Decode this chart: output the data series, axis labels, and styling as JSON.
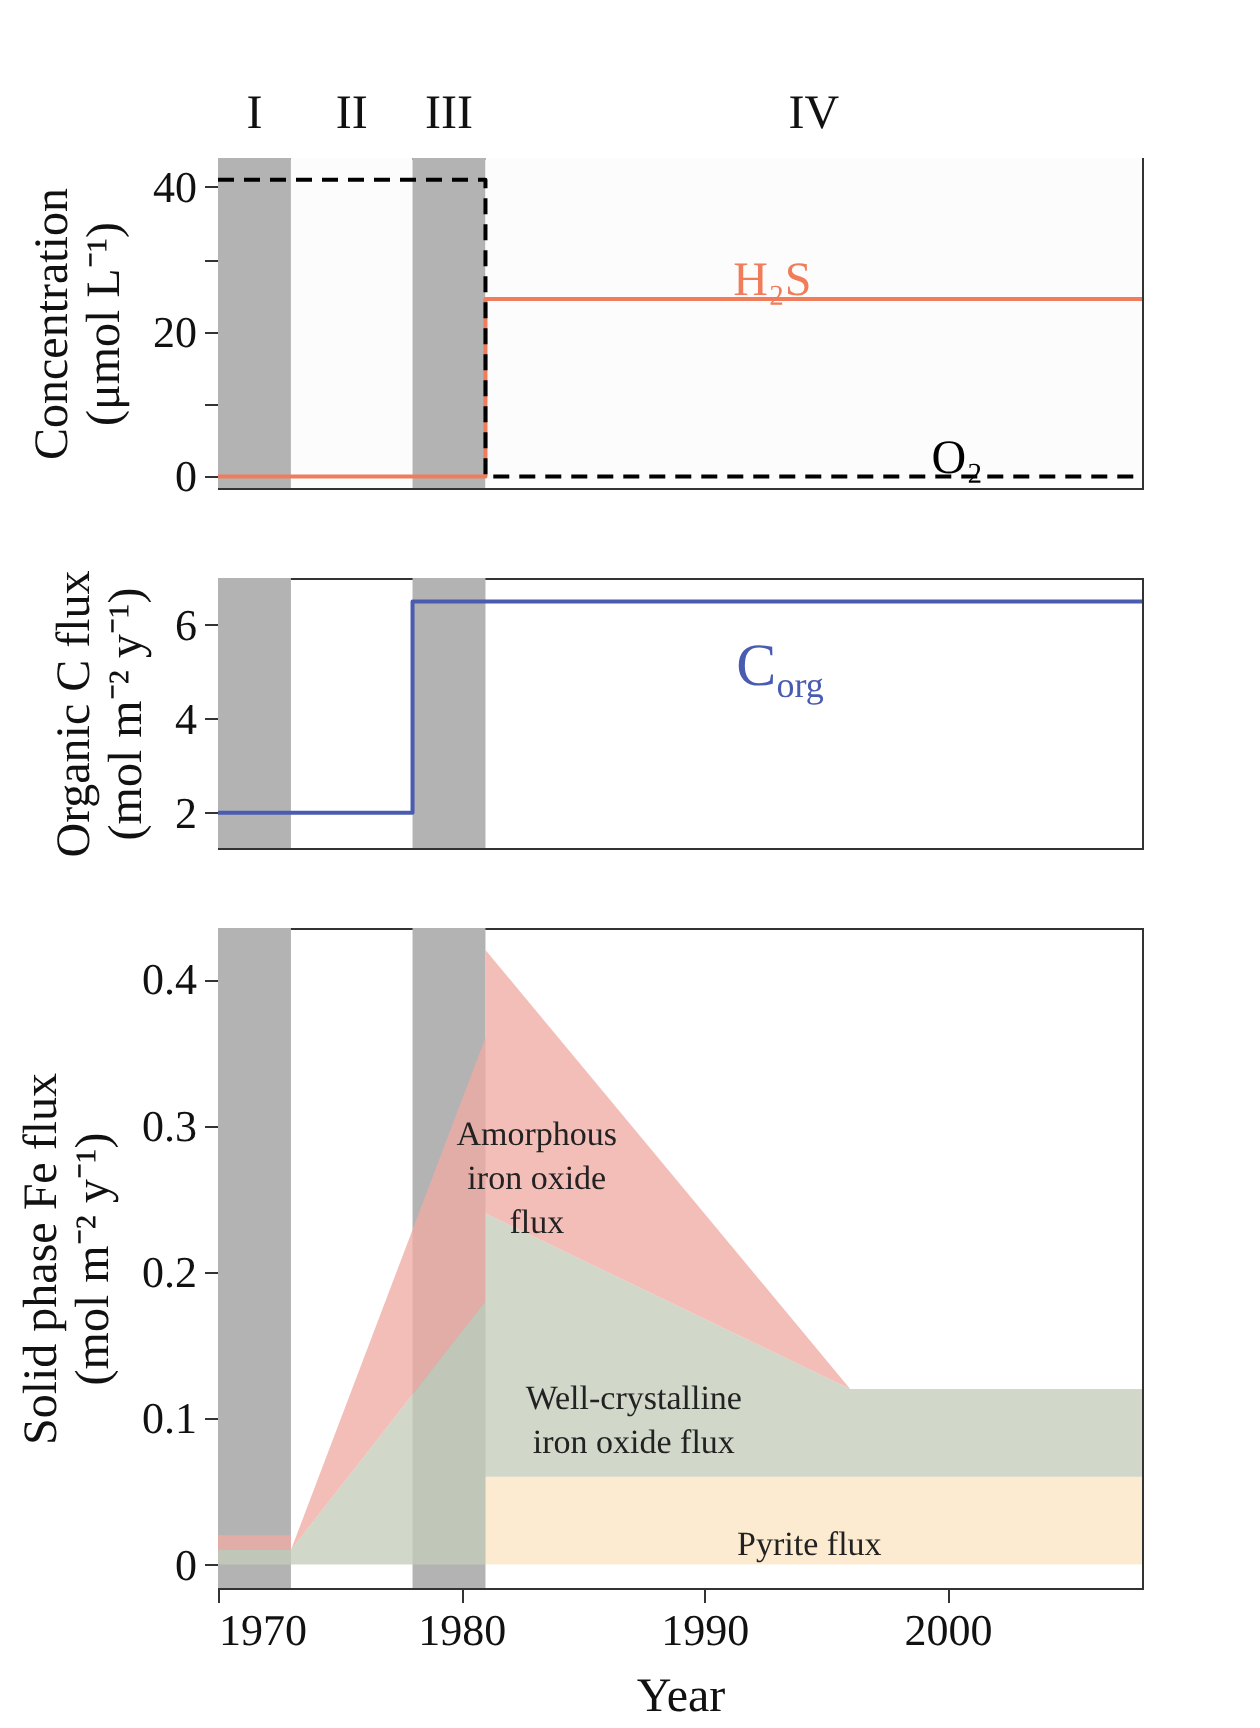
{
  "chart_data": [
    {
      "type": "line",
      "ylabel": "Concentration (μmol L⁻¹)",
      "xlim": [
        1970,
        2008
      ],
      "ylim": [
        -1.6,
        44
      ],
      "yticks": [
        0,
        {
          "value": 10,
          "label": null
        },
        20,
        {
          "value": 30,
          "label": null
        },
        40
      ],
      "tick_labels": "y",
      "series": [
        {
          "name": "H₂S",
          "color": "#f07c5c",
          "x": [
            1970,
            1981,
            1981,
            2008
          ],
          "values": [
            0,
            0,
            24.5,
            24.5
          ]
        },
        {
          "name": "O₂",
          "color": "#000000",
          "line_style": "dashed",
          "x": [
            1970,
            1981,
            1981,
            2008
          ],
          "values": [
            41,
            41,
            0,
            0
          ]
        }
      ],
      "bands": [
        {
          "axis": "x",
          "from": 1970,
          "to": 1973,
          "label": "I",
          "color": "#b3b3b3"
        },
        {
          "axis": "x",
          "from": 1973,
          "to": 1978,
          "label": "II",
          "color": "#fcfcfc"
        },
        {
          "axis": "x",
          "from": 1978,
          "to": 1981,
          "label": "III",
          "color": "#b3b3b3"
        },
        {
          "axis": "x",
          "from": 1981,
          "to": 2008,
          "label": "IV",
          "color": "#fcfcfc"
        }
      ]
    },
    {
      "type": "line",
      "ylabel": "Organic C flux (mol m⁻² y⁻¹)",
      "xlim": [
        1970,
        2008
      ],
      "ylim": [
        1.25,
        7
      ],
      "yticks": [
        2,
        4,
        6
      ],
      "tick_labels": "y",
      "series": [
        {
          "name": "C$_{org}$",
          "color": "#4a5cb0",
          "x": [
            1970,
            1978,
            1978,
            2008
          ],
          "values": [
            2,
            2,
            6.5,
            6.5
          ]
        }
      ],
      "bands": [
        {
          "axis": "x",
          "from": 1970,
          "to": 1973,
          "color": "#b3b3b3"
        },
        {
          "axis": "x",
          "from": 1978,
          "to": 1981,
          "color": "#b3b3b3"
        }
      ]
    },
    {
      "type": "area",
      "stacked": true,
      "xlabel": "Year",
      "ylabel": "Solid phase Fe flux (mol m⁻² y⁻¹)",
      "xlim": [
        1970,
        2008
      ],
      "xticks": [
        1970,
        1980,
        1990,
        2000
      ],
      "ylim": [
        -0.016,
        0.435
      ],
      "yticks": [
        0,
        0.1,
        0.2,
        0.3,
        0.4
      ],
      "x": [
        1970,
        1973,
        1973,
        1981,
        1981,
        1996,
        2008
      ],
      "series": [
        {
          "name": "Pyrite flux",
          "color": "#fbe6c4",
          "values": [
            0,
            0,
            0,
            0,
            0.06,
            0.06,
            0.06
          ]
        },
        {
          "name": "Well-crystalline iron oxide flux",
          "color": "#c4ccba",
          "values": [
            0.01,
            0.01,
            0.01,
            0.18,
            0.18,
            0.06,
            0.06
          ]
        },
        {
          "name": "Amorphous iron oxide flux",
          "color": "#f0aca4",
          "values": [
            0.01,
            0.01,
            0,
            0.18,
            0.18,
            0,
            0
          ]
        }
      ],
      "bands": [
        {
          "axis": "x",
          "from": 1970,
          "to": 1973,
          "color": "#b3b3b3"
        },
        {
          "axis": "x",
          "from": 1978,
          "to": 1981,
          "color": "#b3b3b3"
        }
      ]
    }
  ]
}
